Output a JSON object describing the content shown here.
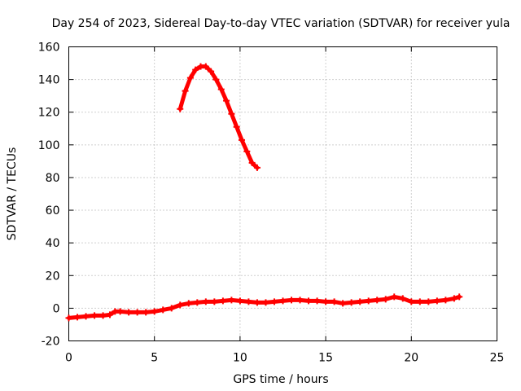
{
  "chart_data": {
    "type": "scatter",
    "title": "Day 254 of 2023, Sidereal Day-to-day VTEC variation (SDTVAR) for receiver yula",
    "xlabel": "GPS time / hours",
    "ylabel": "SDTVAR / TECUs",
    "xlim": [
      0,
      25
    ],
    "ylim": [
      -20,
      160
    ],
    "xticks": [
      0,
      5,
      10,
      15,
      20,
      25
    ],
    "yticks": [
      -20,
      0,
      20,
      40,
      60,
      80,
      100,
      120,
      140,
      160
    ],
    "grid": true,
    "marker": "+",
    "series": [
      {
        "name": "SDTVAR",
        "color": "#ff0000",
        "segments": [
          {
            "x": [
              0.0,
              0.5,
              1.0,
              1.5,
              2.0,
              2.4,
              2.7,
              3.0,
              3.5,
              4.0,
              4.5,
              5.0,
              5.5,
              6.0,
              6.5,
              7.0,
              7.5,
              8.0,
              8.5,
              9.0,
              9.5,
              10.0,
              10.5,
              11.0,
              11.5,
              12.0,
              12.5,
              13.0,
              13.5,
              14.0,
              14.5,
              15.0,
              15.5,
              16.0,
              16.5,
              17.0,
              17.5,
              18.0,
              18.5,
              19.0,
              19.5,
              20.0,
              20.5,
              21.0,
              21.5,
              22.0,
              22.5,
              22.8
            ],
            "y": [
              -6,
              -5.5,
              -5,
              -4.5,
              -4.5,
              -4,
              -2,
              -2,
              -2.5,
              -2.5,
              -2.5,
              -2,
              -1,
              0,
              2,
              3,
              3.5,
              4,
              4,
              4.5,
              5,
              4.5,
              4,
              3.5,
              3.5,
              4,
              4.5,
              5,
              5,
              4.5,
              4.5,
              4,
              4,
              3,
              3.5,
              4,
              4.5,
              5,
              5.5,
              7,
              6,
              4,
              4,
              4,
              4.5,
              5,
              6,
              7
            ]
          },
          {
            "x": [
              6.5,
              6.8,
              7.1,
              7.4,
              7.7,
              8.0,
              8.3,
              8.6,
              8.9,
              9.2,
              9.5,
              9.8,
              10.1,
              10.4,
              10.7,
              11.0
            ],
            "y": [
              122,
              133,
              141,
              146,
              148,
              148,
              145,
              140,
              134,
              127,
              119,
              111,
              103,
              96,
              89,
              86
            ]
          }
        ]
      }
    ]
  }
}
